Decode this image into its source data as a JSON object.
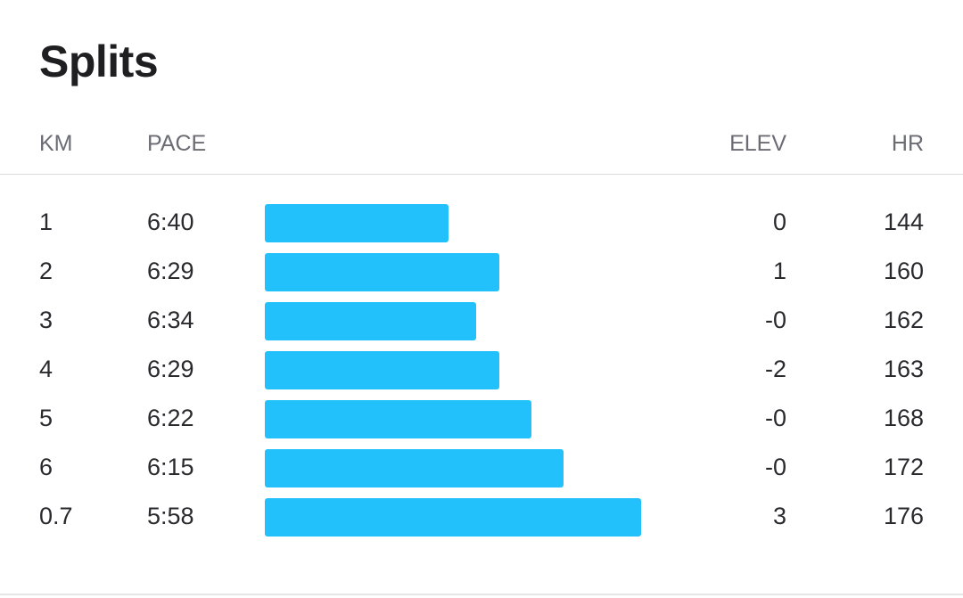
{
  "title": "Splits",
  "columns": {
    "km": "KM",
    "pace": "PACE",
    "elev": "ELEV",
    "hr": "HR"
  },
  "bar_color": "#22c1fb",
  "splits": [
    {
      "km": "1",
      "pace": "6:40",
      "pace_seconds": 400,
      "elev": "0",
      "hr": "144"
    },
    {
      "km": "2",
      "pace": "6:29",
      "pace_seconds": 389,
      "elev": "1",
      "hr": "160"
    },
    {
      "km": "3",
      "pace": "6:34",
      "pace_seconds": 394,
      "elev": "-0",
      "hr": "162"
    },
    {
      "km": "4",
      "pace": "6:29",
      "pace_seconds": 389,
      "elev": "-2",
      "hr": "163"
    },
    {
      "km": "5",
      "pace": "6:22",
      "pace_seconds": 382,
      "elev": "-0",
      "hr": "168"
    },
    {
      "km": "6",
      "pace": "6:15",
      "pace_seconds": 375,
      "elev": "-0",
      "hr": "172"
    },
    {
      "km": "0.7",
      "pace": "5:58",
      "pace_seconds": 358,
      "elev": "3",
      "hr": "176"
    }
  ]
}
